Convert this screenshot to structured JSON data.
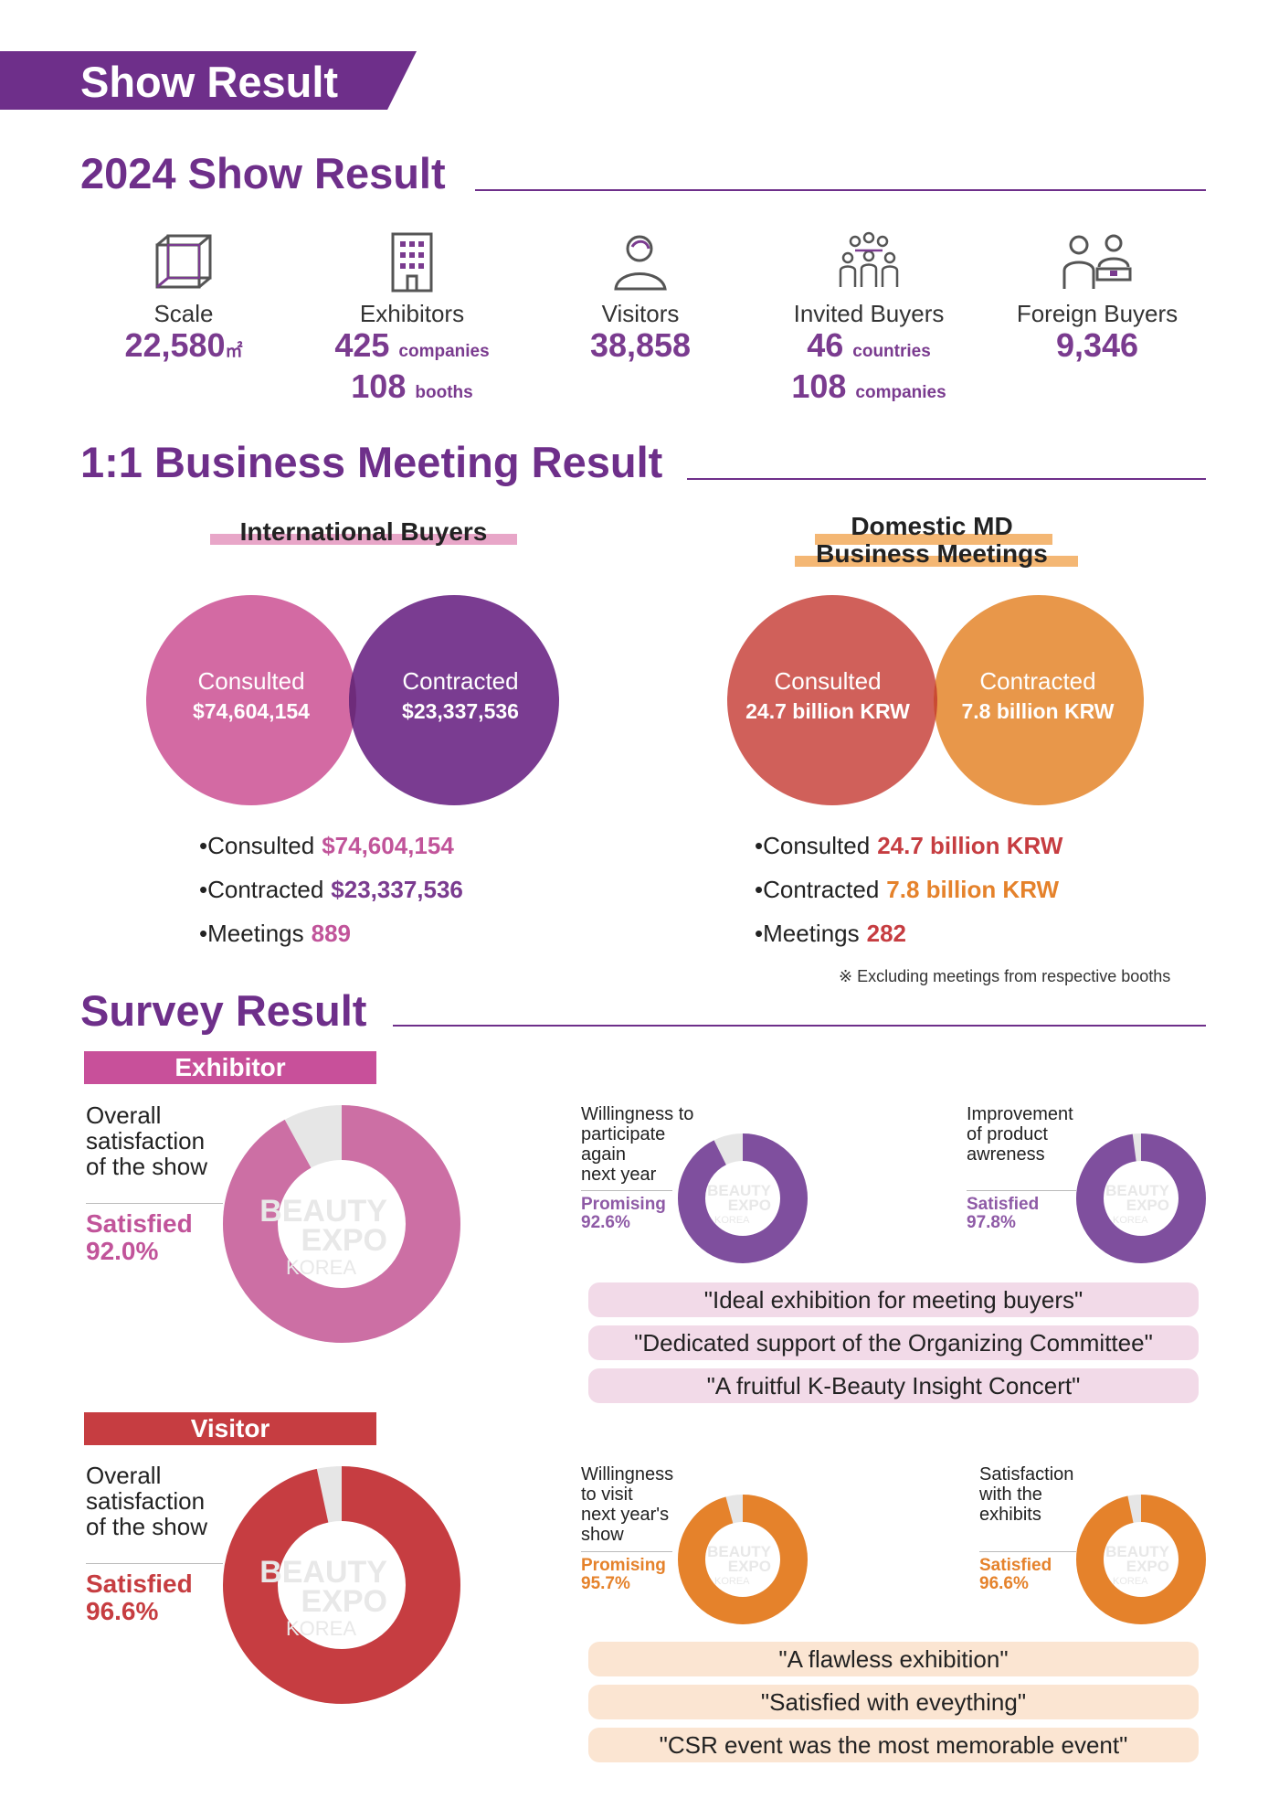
{
  "banner": "Show Result",
  "sections": {
    "show": "2024 Show Result",
    "meeting": "1:1 Business Meeting Result",
    "survey": "Survey Result"
  },
  "stats": [
    {
      "icon": "cube-icon",
      "label": "Scale",
      "value": "22,580",
      "unit": "㎡"
    },
    {
      "icon": "building-icon",
      "label": "Exhibitors",
      "value1": "425",
      "unit1": "companies",
      "value2": "108",
      "unit2": "booths"
    },
    {
      "icon": "visitor-icon",
      "label": "Visitors",
      "value": "38,858"
    },
    {
      "icon": "group-icon",
      "label": "Invited Buyers",
      "value1": "46",
      "unit1": "countries",
      "value2": "108",
      "unit2": "companies"
    },
    {
      "icon": "buyer-desk-icon",
      "label": "Foreign Buyers",
      "value": "9,346"
    }
  ],
  "intl": {
    "title": "International Buyers",
    "left_label": "Consulted",
    "left_value": "$74,604,154",
    "right_label": "Contracted",
    "right_value": "$23,337,536",
    "b1_label": "Consulted",
    "b1_value": "$74,604,154",
    "b2_label": "Contracted",
    "b2_value": "$23,337,536",
    "b3_label": "Meetings",
    "b3_value": "889",
    "colors": {
      "left": "#d36aa3",
      "right": "#7a3c91",
      "overlap": "#6e2b7a"
    }
  },
  "domestic": {
    "title1": "Domestic MD",
    "title2": "Business Meetings",
    "left_label": "Consulted",
    "left_value": "24.7 billion KRW",
    "right_label": "Contracted",
    "right_value": "7.8 billion KRW",
    "b1_label": "Consulted",
    "b1_value": "24.7 billion KRW",
    "b2_label": "Contracted",
    "b2_value": "7.8 billion KRW",
    "b3_label": "Meetings",
    "b3_value": "282",
    "note": "※ Excluding meetings from respective booths",
    "colors": {
      "left": "#d0605a",
      "right": "#e8974a",
      "overlap": "#c94a33"
    }
  },
  "exhibitor": {
    "tag": "Exhibitor",
    "main_q1": "Overall",
    "main_q2": "satisfaction",
    "main_q3": "of the show",
    "main_label": "Satisfied",
    "main_value": "92.0%",
    "main_pct": 92.0,
    "q2_1": "Willingness to",
    "q2_2": "participate",
    "q2_3": "again",
    "q2_4": "next year",
    "q2_label": "Promising",
    "q2_value": "92.6%",
    "q2_pct": 92.6,
    "q3_1": "Improvement",
    "q3_2": "of product",
    "q3_3": "awreness",
    "q3_label": "Satisfied",
    "q3_value": "97.8%",
    "q3_pct": 97.8,
    "quotes": [
      "\"Ideal exhibition for meeting buyers\"",
      "\"Dedicated support of the Organizing Committee\"",
      "\"A fruitful K-Beauty Insight Concert\""
    ],
    "colors": {
      "main": "#cc6fa4",
      "small": "#7f4f9e",
      "label": "#c1549a",
      "small_label": "#8e5aa6"
    }
  },
  "visitor": {
    "tag": "Visitor",
    "main_q1": "Overall",
    "main_q2": "satisfaction",
    "main_q3": "of the show",
    "main_label": "Satisfied",
    "main_value": "96.6%",
    "main_pct": 96.6,
    "q2_1": "Willingness",
    "q2_2": "to visit",
    "q2_3": "next year's",
    "q2_4": "show",
    "q2_label": "Promising",
    "q2_value": "95.7%",
    "q2_pct": 95.7,
    "q3_1": "Satisfaction",
    "q3_2": "with the",
    "q3_3": "exhibits",
    "q3_label": "Satisfied",
    "q3_value": "96.6%",
    "q3_pct": 96.6,
    "quotes": [
      "\"A flawless exhibition\"",
      "\"Satisfied with eveything\"",
      "\"CSR event was the most memorable event\""
    ],
    "colors": {
      "main": "#c63d41",
      "small": "#e5822b",
      "label": "#c63d41",
      "small_label": "#e5822b"
    }
  },
  "watermark": {
    "l1": "BEAUTY",
    "l2": "EXPO",
    "l3": "KOREA"
  }
}
